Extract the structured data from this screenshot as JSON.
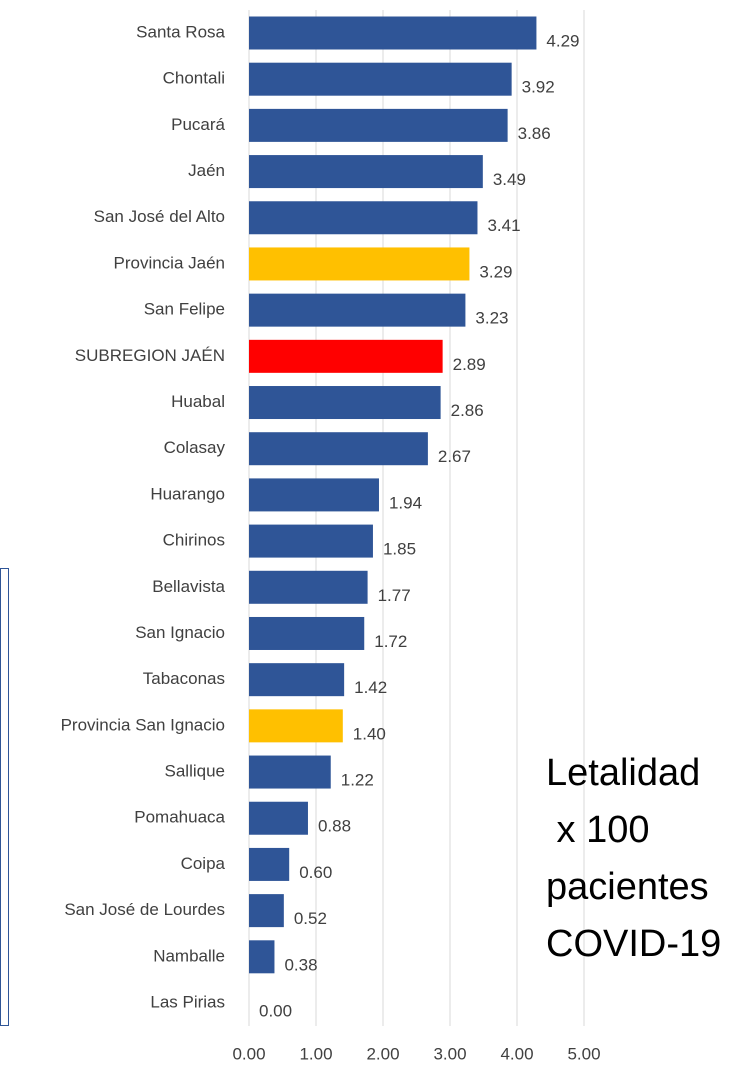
{
  "chart_data": {
    "type": "bar",
    "orientation": "horizontal",
    "categories": [
      "Santa Rosa",
      "Chontali",
      "Pucará",
      "Jaén",
      "San José del Alto",
      "Provincia Jaén",
      "San Felipe",
      "SUBREGION JAÉN",
      "Huabal",
      "Colasay",
      "Huarango",
      "Chirinos",
      "Bellavista",
      "San Ignacio",
      "Tabaconas",
      "Provincia San Ignacio",
      "Sallique",
      "Pomahuaca",
      "Coipa",
      "San José de Lourdes",
      "Namballe",
      "Las Pirias"
    ],
    "values": [
      4.29,
      3.92,
      3.86,
      3.49,
      3.41,
      3.29,
      3.23,
      2.89,
      2.86,
      2.67,
      1.94,
      1.85,
      1.77,
      1.72,
      1.42,
      1.4,
      1.22,
      0.88,
      0.6,
      0.52,
      0.38,
      0
    ],
    "value_labels": [
      "4.29",
      "3.92",
      "3.86",
      "3.49",
      "3.41",
      "3.29",
      "3.23",
      "2.89",
      "2.86",
      "2.67",
      "1.94",
      "1.85",
      "1.77",
      "1.72",
      "1.42",
      "1.40",
      "1.22",
      "0.88",
      "0.60",
      "0.52",
      "0.38",
      "0.00"
    ],
    "colors": [
      "#2f5597",
      "#2f5597",
      "#2f5597",
      "#2f5597",
      "#2f5597",
      "#ffc000",
      "#2f5597",
      "#ff0000",
      "#2f5597",
      "#2f5597",
      "#2f5597",
      "#2f5597",
      "#2f5597",
      "#2f5597",
      "#2f5597",
      "#ffc000",
      "#2f5597",
      "#2f5597",
      "#2f5597",
      "#2f5597",
      "#2f5597",
      "#2f5597"
    ],
    "xlim": [
      0,
      5
    ],
    "xticks": [
      {
        "value": 0,
        "label": "0.00"
      },
      {
        "value": 1,
        "label": "1.00"
      },
      {
        "value": 2,
        "label": "2.00"
      },
      {
        "value": 3,
        "label": "3.00"
      },
      {
        "value": 4,
        "label": "4.00"
      },
      {
        "value": 5,
        "label": "5.00"
      }
    ],
    "grid": true,
    "annotation": [
      "Letalidad",
      " x 100",
      "pacientes",
      "COVID-19"
    ]
  }
}
